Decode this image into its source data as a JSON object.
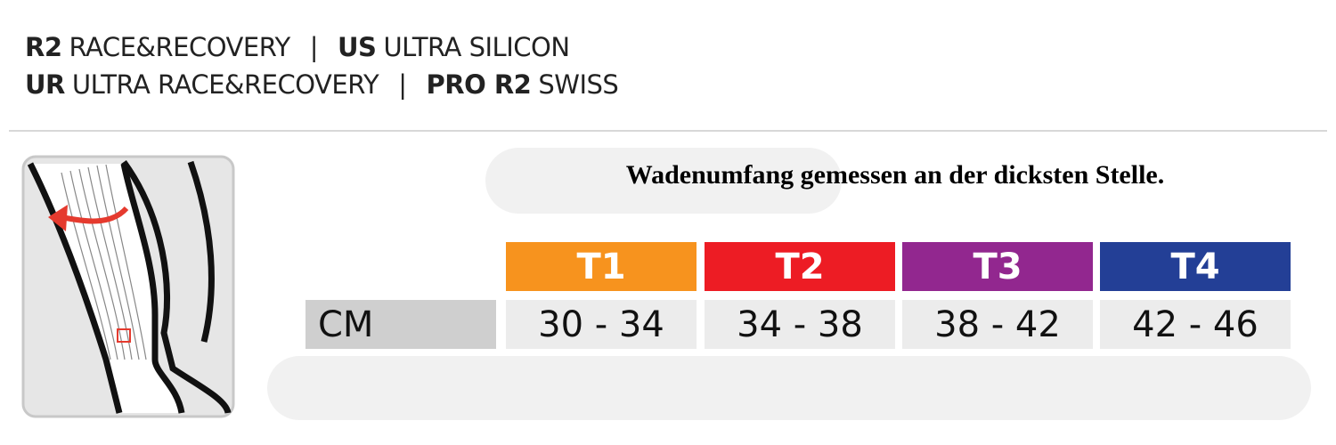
{
  "header": {
    "lines": [
      [
        {
          "code": "R2",
          "name": "RACE&RECOVERY"
        },
        {
          "code": "US",
          "name": "ULTRA SILICON"
        }
      ],
      [
        {
          "code": "UR",
          "name": "ULTRA RACE&RECOVERY"
        },
        {
          "code": "PRO R2",
          "name": "SWISS"
        }
      ]
    ],
    "separator": "|"
  },
  "note": "Wadenumfang gemessen an der dicksten Stelle.",
  "table": {
    "row_label": "CM",
    "columns": [
      "T1",
      "T2",
      "T3",
      "T4"
    ],
    "column_colors": [
      "#f7931e",
      "#ed1c24",
      "#92278f",
      "#233f96"
    ],
    "row": [
      "30 - 34",
      "34 - 38",
      "38 - 42",
      "42 - 46"
    ]
  }
}
